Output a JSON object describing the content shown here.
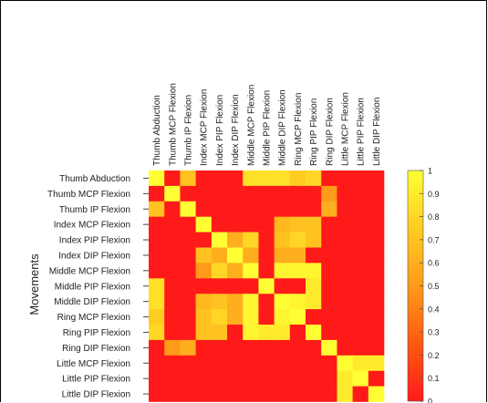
{
  "chart_data": {
    "type": "heatmap",
    "title": "",
    "xlabel": "",
    "ylabel": "Movements",
    "row_labels": [
      "Thumb Abduction",
      "Thumb MCP Flexion",
      "Thumb IP Flexion",
      "Index MCP Flexion",
      "Index PIP Flexion",
      "Index DIP Flexion",
      "Middle MCP Flexion",
      "Middle PIP Flexion",
      "Middle DIP Flexion",
      "Ring MCP Flexion",
      "Ring PIP Flexion",
      "Ring DIP Flexion",
      "Little MCP Flexion",
      "Little PIP Flexion",
      "Little DIP Flexion"
    ],
    "col_labels": [
      "Thumb Abduction",
      "Thumb MCP Flexion",
      "Thumb IP Flexion",
      "Index MCP Flexion",
      "Index PIP Flexion",
      "Index DIP Flexion",
      "Middle MCP Flexion",
      "Middle PIP Flexion",
      "Middle DIP Flexion",
      "Ring MCP Flexion",
      "Ring PIP Flexion",
      "Ring DIP Flexion",
      "Little MCP Flexion",
      "Little PIP Flexion",
      "Little DIP Flexion"
    ],
    "values": [
      [
        1.0,
        0.0,
        0.7,
        0.0,
        0.0,
        0.0,
        0.85,
        0.85,
        0.85,
        0.75,
        0.8,
        0.0,
        0.0,
        0.0,
        0.0
      ],
      [
        0.0,
        1.0,
        0.0,
        0.0,
        0.0,
        0.0,
        0.0,
        0.0,
        0.0,
        0.0,
        0.0,
        0.5,
        0.0,
        0.0,
        0.0
      ],
      [
        0.7,
        0.0,
        1.0,
        0.0,
        0.0,
        0.0,
        0.0,
        0.0,
        0.0,
        0.0,
        0.0,
        0.6,
        0.0,
        0.0,
        0.0
      ],
      [
        0.0,
        0.0,
        0.0,
        1.0,
        0.0,
        0.0,
        0.0,
        0.0,
        0.65,
        0.7,
        0.7,
        0.0,
        0.0,
        0.0,
        0.0
      ],
      [
        0.0,
        0.0,
        0.0,
        0.0,
        1.0,
        0.6,
        0.8,
        0.0,
        0.7,
        0.8,
        0.7,
        0.0,
        0.0,
        0.0,
        0.0
      ],
      [
        0.0,
        0.0,
        0.0,
        0.7,
        0.6,
        1.0,
        0.6,
        0.0,
        0.6,
        0.6,
        0.0,
        0.0,
        0.0,
        0.0,
        0.0
      ],
      [
        0.0,
        0.0,
        0.0,
        0.5,
        0.8,
        0.6,
        1.0,
        0.0,
        0.95,
        0.95,
        0.95,
        0.0,
        0.0,
        0.0,
        0.0
      ],
      [
        0.85,
        0.0,
        0.0,
        0.0,
        0.0,
        0.0,
        0.0,
        1.0,
        0.0,
        0.0,
        0.9,
        0.0,
        0.0,
        0.0,
        0.0
      ],
      [
        0.85,
        0.0,
        0.0,
        0.65,
        0.7,
        0.6,
        0.95,
        0.0,
        1.0,
        0.95,
        0.9,
        0.0,
        0.0,
        0.0,
        0.0
      ],
      [
        0.75,
        0.0,
        0.0,
        0.7,
        0.8,
        0.6,
        0.95,
        0.0,
        0.95,
        1.0,
        0.0,
        0.0,
        0.0,
        0.0,
        0.0
      ],
      [
        0.8,
        0.0,
        0.0,
        0.7,
        0.7,
        0.0,
        0.95,
        0.9,
        0.9,
        0.0,
        1.0,
        0.0,
        0.0,
        0.0,
        0.0
      ],
      [
        0.0,
        0.5,
        0.6,
        0.0,
        0.0,
        0.0,
        0.0,
        0.0,
        0.0,
        0.0,
        0.0,
        1.0,
        0.0,
        0.0,
        0.0
      ],
      [
        0.0,
        0.0,
        0.0,
        0.0,
        0.0,
        0.0,
        0.0,
        0.0,
        0.0,
        0.0,
        0.0,
        0.0,
        1.0,
        0.9,
        0.9
      ],
      [
        0.0,
        0.0,
        0.0,
        0.0,
        0.0,
        0.0,
        0.0,
        0.0,
        0.0,
        0.0,
        0.0,
        0.0,
        0.9,
        1.0,
        0.0
      ],
      [
        0.0,
        0.0,
        0.0,
        0.0,
        0.0,
        0.0,
        0.0,
        0.0,
        0.0,
        0.0,
        0.0,
        0.0,
        0.9,
        0.0,
        1.0
      ]
    ],
    "colorbar": {
      "range": [
        0,
        1
      ],
      "ticks": [
        0,
        0.1,
        0.2,
        0.3,
        0.4,
        0.5,
        0.6,
        0.7,
        0.8,
        0.9,
        1
      ],
      "tick_labels": [
        "0",
        "0.1",
        "0.2",
        "0.3",
        "0.4",
        "0.5",
        "0.6",
        "0.7",
        "0.8",
        "0.9",
        "1"
      ],
      "colormap": [
        "#ff1a1a",
        "#ff5a10",
        "#ff9a1a",
        "#ffcc22",
        "#ffff33"
      ]
    },
    "grid": false
  }
}
